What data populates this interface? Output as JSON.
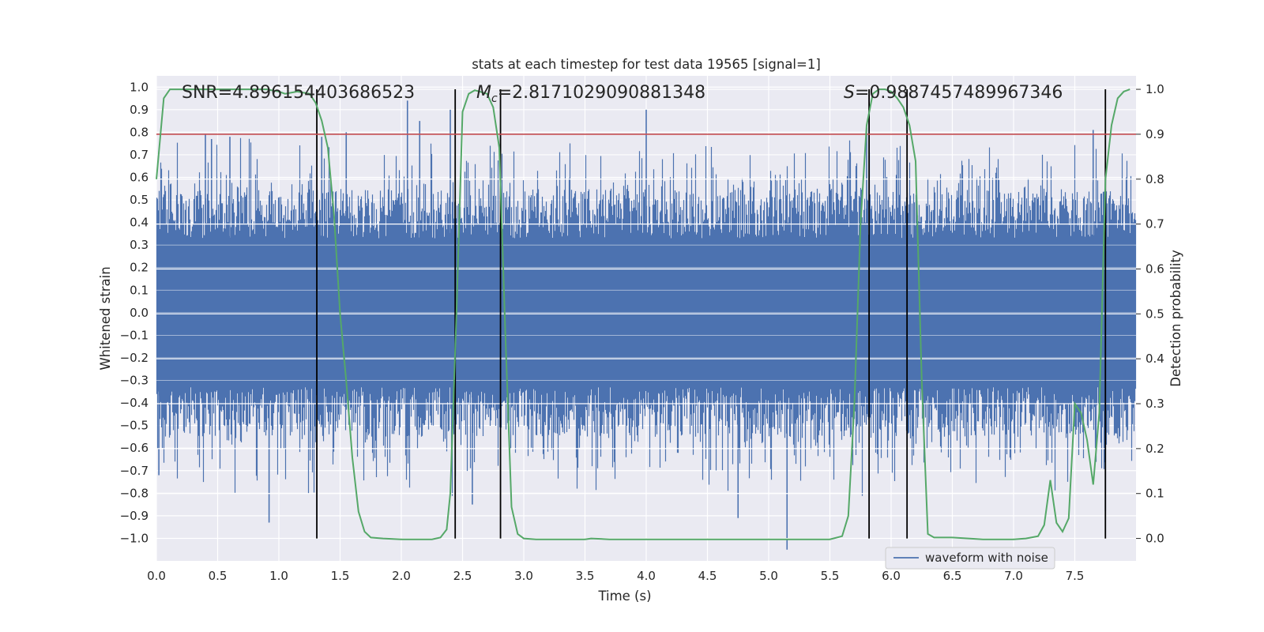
{
  "chart_data": {
    "type": "line",
    "title": "stats at each timestep for test data 19565 [signal=1]",
    "xlabel": "Time (s)",
    "ylabel": "Whitened strain",
    "ylabel_right": "Detection probability",
    "xlim": [
      0.0,
      8.0
    ],
    "ylim": [
      -1.1,
      1.05
    ],
    "ylim_right": [
      -0.05,
      1.03
    ],
    "x_ticks": [
      0.0,
      0.5,
      1.0,
      1.5,
      2.0,
      2.5,
      3.0,
      3.5,
      4.0,
      4.5,
      5.0,
      5.5,
      6.0,
      6.5,
      7.0,
      7.5
    ],
    "x_tick_labels": [
      "0.0",
      "0.5",
      "1.0",
      "1.5",
      "2.0",
      "2.5",
      "3.0",
      "3.5",
      "4.0",
      "4.5",
      "5.0",
      "5.5",
      "6.0",
      "6.5",
      "7.0",
      "7.5"
    ],
    "y_ticks": [
      1.0,
      0.9,
      0.8,
      0.7,
      0.6,
      0.5,
      0.4,
      0.3,
      0.2,
      0.1,
      0.0,
      -0.1,
      -0.2,
      -0.3,
      -0.4,
      -0.5,
      -0.6,
      -0.7,
      -0.8,
      -0.9,
      -1.0
    ],
    "y_tick_labels": [
      "1.0",
      "0.9",
      "0.8",
      "0.7",
      "0.6",
      "0.5",
      "0.4",
      "0.3",
      "0.2",
      "0.1",
      "0.0",
      "−0.1",
      "−0.2",
      "−0.3",
      "−0.4",
      "−0.5",
      "−0.6",
      "−0.7",
      "−0.8",
      "−0.9",
      "−1.0"
    ],
    "y2_ticks": [
      1.0,
      0.9,
      0.8,
      0.7,
      0.6,
      0.5,
      0.4,
      0.3,
      0.2,
      0.1,
      0.0
    ],
    "y2_tick_labels": [
      "1.0",
      "0.9",
      "0.8",
      "0.7",
      "0.6",
      "0.5",
      "0.4",
      "0.3",
      "0.2",
      "0.1",
      "0.0"
    ],
    "grid": true,
    "legend": {
      "position": "lower-center-right",
      "entries": [
        {
          "label": "waveform with noise",
          "color": "#4c72b0"
        }
      ]
    },
    "annotations": {
      "snr": "SNR=4.896154403686523",
      "mc_symbol": "M",
      "mc_sub": "c",
      "mc_value": "=2.8171029090881348",
      "s_symbol": "S",
      "s_value": "=0.9887457489967346"
    },
    "waveform": {
      "name": "waveform with noise",
      "color": "#4c72b0",
      "sample_rate_hz": 2048,
      "duration_s": 8.0,
      "envelope_dense": 0.33,
      "peaks": [
        {
          "x": 0.02,
          "y": -0.72
        },
        {
          "x": 0.4,
          "y": 0.79
        },
        {
          "x": 0.45,
          "y": 0.77
        },
        {
          "x": 0.6,
          "y": 0.78
        },
        {
          "x": 0.92,
          "y": -0.93
        },
        {
          "x": 1.35,
          "y": 0.78
        },
        {
          "x": 1.55,
          "y": 0.8
        },
        {
          "x": 2.05,
          "y": 0.94
        },
        {
          "x": 2.15,
          "y": 0.85
        },
        {
          "x": 2.4,
          "y": 0.9
        },
        {
          "x": 2.58,
          "y": -0.85
        },
        {
          "x": 4.0,
          "y": 0.9
        },
        {
          "x": 4.75,
          "y": -0.91
        },
        {
          "x": 5.15,
          "y": -1.05
        },
        {
          "x": 5.8,
          "y": 0.82
        },
        {
          "x": 7.65,
          "y": 0.81
        },
        {
          "x": 7.75,
          "y": -0.88
        }
      ]
    },
    "threshold": {
      "value": 0.9,
      "axis": "right",
      "color": "#c44e52"
    },
    "vlines": [
      1.31,
      2.44,
      2.81,
      5.82,
      6.13,
      7.75
    ],
    "detection_probability": {
      "color": "#55a868",
      "x": [
        0.0,
        0.06,
        0.11,
        0.25,
        0.5,
        0.75,
        0.9,
        1.0,
        1.05,
        1.15,
        1.25,
        1.3,
        1.35,
        1.4,
        1.45,
        1.5,
        1.55,
        1.6,
        1.65,
        1.7,
        1.75,
        1.85,
        2.0,
        2.15,
        2.25,
        2.32,
        2.37,
        2.4,
        2.45,
        2.5,
        2.55,
        2.6,
        2.7,
        2.75,
        2.8,
        2.85,
        2.9,
        2.95,
        3.0,
        3.1,
        3.3,
        3.5,
        3.55,
        3.7,
        4.0,
        4.5,
        5.0,
        5.3,
        5.5,
        5.6,
        5.65,
        5.7,
        5.75,
        5.8,
        5.85,
        5.9,
        5.95,
        6.0,
        6.05,
        6.1,
        6.15,
        6.2,
        6.25,
        6.3,
        6.35,
        6.5,
        6.75,
        7.0,
        7.1,
        7.2,
        7.25,
        7.3,
        7.35,
        7.4,
        7.45,
        7.5,
        7.55,
        7.6,
        7.65,
        7.7,
        7.75,
        7.8,
        7.85,
        7.9,
        7.95
      ],
      "y": [
        0.8,
        0.98,
        1.0,
        1.0,
        1.0,
        1.0,
        1.0,
        0.995,
        0.99,
        0.995,
        0.99,
        0.97,
        0.93,
        0.87,
        0.72,
        0.5,
        0.35,
        0.18,
        0.06,
        0.015,
        0.002,
        0.0,
        -0.002,
        -0.002,
        -0.002,
        0.002,
        0.02,
        0.1,
        0.5,
        0.95,
        0.99,
        0.998,
        0.99,
        0.96,
        0.87,
        0.45,
        0.07,
        0.01,
        0.0,
        -0.002,
        -0.002,
        -0.002,
        0.0,
        -0.002,
        -0.002,
        -0.002,
        -0.002,
        -0.002,
        -0.002,
        0.005,
        0.05,
        0.3,
        0.7,
        0.92,
        0.99,
        1.0,
        1.0,
        0.995,
        0.98,
        0.96,
        0.92,
        0.84,
        0.35,
        0.01,
        0.002,
        0.002,
        -0.002,
        -0.002,
        0.0,
        0.005,
        0.03,
        0.13,
        0.035,
        0.015,
        0.045,
        0.3,
        0.28,
        0.22,
        0.12,
        0.28,
        0.8,
        0.92,
        0.98,
        0.995,
        1.0
      ]
    }
  }
}
